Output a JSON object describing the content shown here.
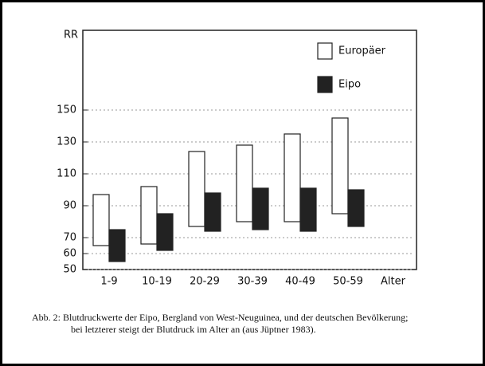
{
  "chart_data": {
    "type": "range-bar",
    "y_label": "RR",
    "x_label": "Alter",
    "categories": [
      "1-9",
      "10-19",
      "20-29",
      "30-39",
      "40-49",
      "50-59"
    ],
    "series": [
      {
        "name": "Europäer",
        "color": "#ffffff",
        "low": [
          65,
          66,
          77,
          80,
          80,
          85
        ],
        "high": [
          97,
          102,
          124,
          128,
          135,
          145
        ]
      },
      {
        "name": "Eipo",
        "color": "#222222",
        "low": [
          55,
          62,
          74,
          75,
          74,
          77
        ],
        "high": [
          75,
          85,
          98,
          101,
          101,
          100
        ]
      }
    ],
    "ylim": [
      50,
      200
    ],
    "yticks": [
      50,
      60,
      70,
      90,
      110,
      130,
      150
    ],
    "grid": true,
    "caption": [
      "Abb. 2: Blutdruckwerte der Eipo, Bergland von West-Neuguinea, und der deutschen Bevölkerung;",
      "bei letzterer steigt der Blutdruck im Alter an (aus Jüptner 1983)."
    ]
  }
}
